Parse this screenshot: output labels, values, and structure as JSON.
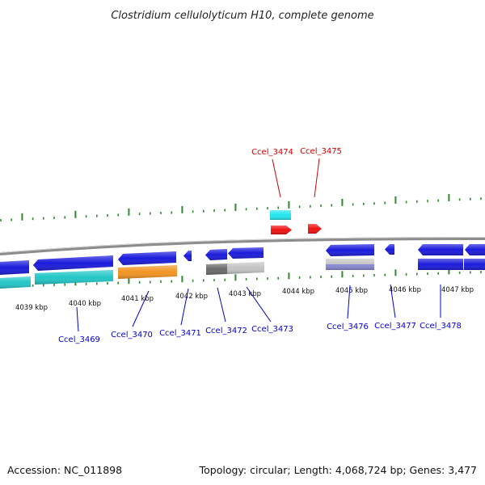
{
  "title": "Clostridium cellulolyticum H10, complete genome",
  "footer": {
    "accession": "Accession: NC_011898",
    "summary": "Topology: circular; Length: 4,068,724 bp; Genes: 3,477"
  },
  "colors": {
    "blue_gene": "#1a1adc",
    "teal_gene": "#22c6c6",
    "orange_gene": "#f29422",
    "gray_dark": "#6a6a6a",
    "gray_light": "#c4c4c4",
    "lavender": "#8a8ad6",
    "red_gene": "#ee1111",
    "cyan_gene": "#22e6ee",
    "backbone": "#8a8a8a",
    "tick": "#2f8a2f",
    "label_blue": "#0000cc",
    "label_red": "#cc0000"
  },
  "kbp_ticks": [
    {
      "label": "4039 kbp"
    },
    {
      "label": "4040 kbp"
    },
    {
      "label": "4041 kbp"
    },
    {
      "label": "4042 kbp"
    },
    {
      "label": "4043 kbp"
    },
    {
      "label": "4044 kbp"
    },
    {
      "label": "4045 kbp"
    },
    {
      "label": "4046 kbp"
    },
    {
      "label": "4047 kbp"
    }
  ],
  "gene_labels_top": [
    {
      "name": "Ccel_3474"
    },
    {
      "name": "Ccel_3475"
    }
  ],
  "gene_labels_bottom": [
    {
      "name": "Ccel_3469"
    },
    {
      "name": "Ccel_3470"
    },
    {
      "name": "Ccel_3471"
    },
    {
      "name": "Ccel_3472"
    },
    {
      "name": "Ccel_3473"
    },
    {
      "name": "Ccel_3476"
    },
    {
      "name": "Ccel_3477"
    },
    {
      "name": "Ccel_3478"
    }
  ]
}
